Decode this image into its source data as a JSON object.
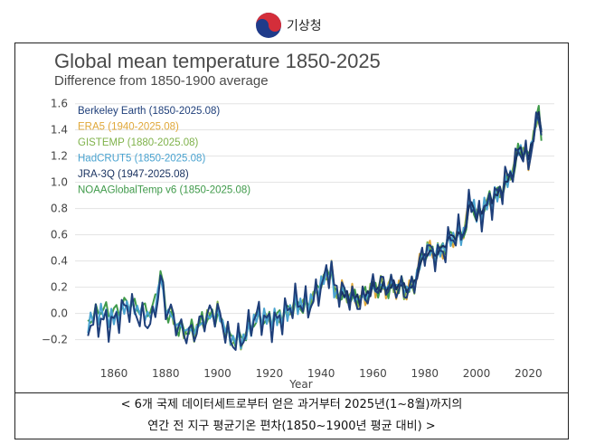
{
  "header": {
    "brand": "기상청"
  },
  "chart_data": {
    "type": "line",
    "title": "Global mean temperature 1850-2025",
    "subtitle": "Difference from 1850-1900 average",
    "xlabel": "Year",
    "ylabel": "",
    "xlim": [
      1845,
      2030
    ],
    "ylim": [
      -0.32,
      1.66
    ],
    "xticks": [
      1860,
      1880,
      1900,
      1920,
      1940,
      1960,
      1980,
      2000,
      2020
    ],
    "yticks": [
      -0.2,
      0.0,
      0.2,
      0.4,
      0.6,
      0.8,
      1.0,
      1.2,
      1.4,
      1.6
    ],
    "ytick_labels": [
      "−0.2",
      "0.0",
      "0.2",
      "0.4",
      "0.6",
      "0.8",
      "1.0",
      "1.2",
      "1.4",
      "1.6"
    ],
    "legend_position": "top-left",
    "series": [
      {
        "name": "Berkeley Earth (1850-2025.08)",
        "color": "#1f3f7a",
        "start": 1850,
        "end": 2025,
        "offset": 0.0
      },
      {
        "name": "ERA5 (1940-2025.08)",
        "color": "#e0a83a",
        "start": 1940,
        "end": 2025,
        "offset": 0.02
      },
      {
        "name": "GISTEMP (1880-2025.08)",
        "color": "#7fb24a",
        "start": 1880,
        "end": 2025,
        "offset": 0.015
      },
      {
        "name": "HadCRUT5 (1850-2025.08)",
        "color": "#4aa3d0",
        "start": 1850,
        "end": 2025,
        "offset": 0.03
      },
      {
        "name": "JRA-3Q (1947-2025.08)",
        "color": "#17305f",
        "start": 1947,
        "end": 2025,
        "offset": -0.01
      },
      {
        "name": "NOAAGlobalTemp v6 (1850-2025.08)",
        "color": "#3f9a4a",
        "start": 1850,
        "end": 2025,
        "offset": 0.06
      }
    ],
    "anchor_years": [
      1850,
      1855,
      1860,
      1865,
      1870,
      1875,
      1878,
      1880,
      1885,
      1890,
      1895,
      1900,
      1905,
      1910,
      1915,
      1920,
      1925,
      1930,
      1935,
      1940,
      1944,
      1945,
      1950,
      1955,
      1960,
      1965,
      1970,
      1975,
      1980,
      1985,
      1990,
      1995,
      1998,
      2000,
      2005,
      2010,
      2015,
      2016,
      2020,
      2023,
      2024,
      2025
    ],
    "anchor_values": [
      -0.12,
      -0.02,
      -0.05,
      0.02,
      -0.02,
      -0.03,
      0.25,
      0.02,
      -0.12,
      -0.12,
      -0.05,
      -0.02,
      -0.18,
      -0.18,
      -0.05,
      -0.05,
      0.0,
      0.05,
      0.05,
      0.25,
      0.35,
      0.15,
      0.12,
      0.12,
      0.2,
      0.18,
      0.22,
      0.2,
      0.45,
      0.45,
      0.6,
      0.6,
      0.85,
      0.72,
      0.88,
      0.95,
      1.1,
      1.25,
      1.2,
      1.45,
      1.58,
      1.38
    ]
  },
  "caption": {
    "line1": "< 6개 국제 데이터세트로부터 얻은 과거부터 2025년(1~8월)까지의",
    "line2": "연간 전 지구 평균기온 편차(1850~1900년 평균 대비) >"
  }
}
